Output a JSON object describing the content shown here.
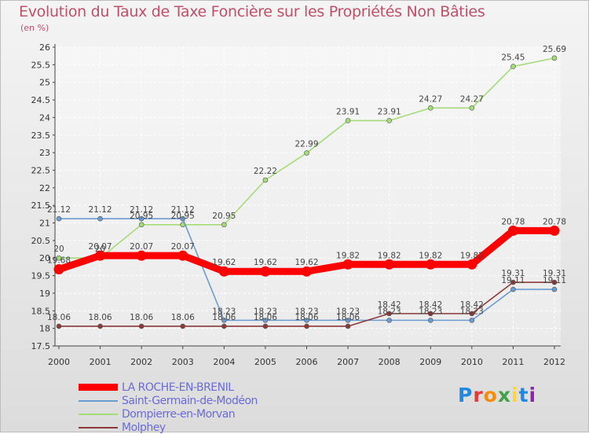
{
  "title": "Evolution du Taux de Taxe Foncière sur les Propriétés Non Bâties",
  "unit": "(en %)",
  "brand": {
    "letters": [
      "P",
      "r",
      "o",
      "x",
      "i",
      "t",
      "i"
    ],
    "colors": [
      "#1e88e5",
      "#e53935",
      "#fb8c00",
      "#43a047",
      "#fdd835",
      "#1e88e5",
      "#8e24aa"
    ]
  },
  "chart_data": {
    "type": "line",
    "title": "Evolution du Taux de Taxe Foncière sur les Propriétés Non Bâties",
    "ylabel": "(en %)",
    "xlabel": "",
    "x": [
      "2000",
      "2001",
      "2002",
      "2003",
      "2004",
      "2005",
      "2006",
      "2007",
      "2008",
      "2009",
      "2010",
      "2011",
      "2012"
    ],
    "ylim": [
      17.5,
      26
    ],
    "yticks": [
      "17.5",
      "18",
      "18.5",
      "19",
      "19.5",
      "20",
      "20.5",
      "21",
      "21.5",
      "22",
      "22.5",
      "23",
      "23.5",
      "24",
      "24.5",
      "25",
      "25.5",
      "26"
    ],
    "series": [
      {
        "name": "LA ROCHE-EN-BRENIL",
        "color": "#ff0000",
        "values": [
          19.68,
          20.07,
          20.07,
          20.07,
          19.62,
          19.62,
          19.62,
          19.82,
          19.82,
          19.82,
          19.82,
          20.78,
          20.78
        ],
        "labels": [
          "19.68",
          "20.07",
          "20.07",
          "20.07",
          "19.62",
          "19.62",
          "19.62",
          "19.82",
          "19.82",
          "19.82",
          "19.82",
          "20.78",
          "20.78"
        ]
      },
      {
        "name": "Saint-Germain-de-Modéon",
        "color": "#6b9bd0",
        "values": [
          21.12,
          21.12,
          21.12,
          21.12,
          18.23,
          18.23,
          18.23,
          18.23,
          18.23,
          18.23,
          18.23,
          19.11,
          19.11
        ],
        "labels": [
          "21.12",
          "21.12",
          "21.12",
          "21.12",
          "18.23",
          "18.23",
          "18.23",
          "18.23",
          "18.23",
          "18.23",
          "18.23",
          "19.11",
          "19.11"
        ]
      },
      {
        "name": "Dompierre-en-Morvan",
        "color": "#a5dc78",
        "values": [
          20,
          20,
          20.95,
          20.95,
          20.95,
          22.22,
          22.99,
          23.91,
          23.91,
          24.27,
          24.27,
          25.45,
          25.69
        ],
        "labels": [
          "20",
          "20",
          "20.95",
          "20.95",
          "20.95",
          "22.22",
          "22.99",
          "23.91",
          "23.91",
          "24.27",
          "24.27",
          "25.45",
          "25.69"
        ]
      },
      {
        "name": "Molphey",
        "color": "#8b3a3a",
        "values": [
          18.06,
          18.06,
          18.06,
          18.06,
          18.06,
          18.06,
          18.06,
          18.06,
          18.42,
          18.42,
          18.42,
          19.31,
          19.31
        ],
        "labels": [
          "18.06",
          "18.06",
          "18.06",
          "18.06",
          "18.06",
          "18.06",
          "18.06",
          "18.06",
          "18.42",
          "18.42",
          "18.42",
          "19.31",
          "19.31"
        ]
      }
    ]
  }
}
